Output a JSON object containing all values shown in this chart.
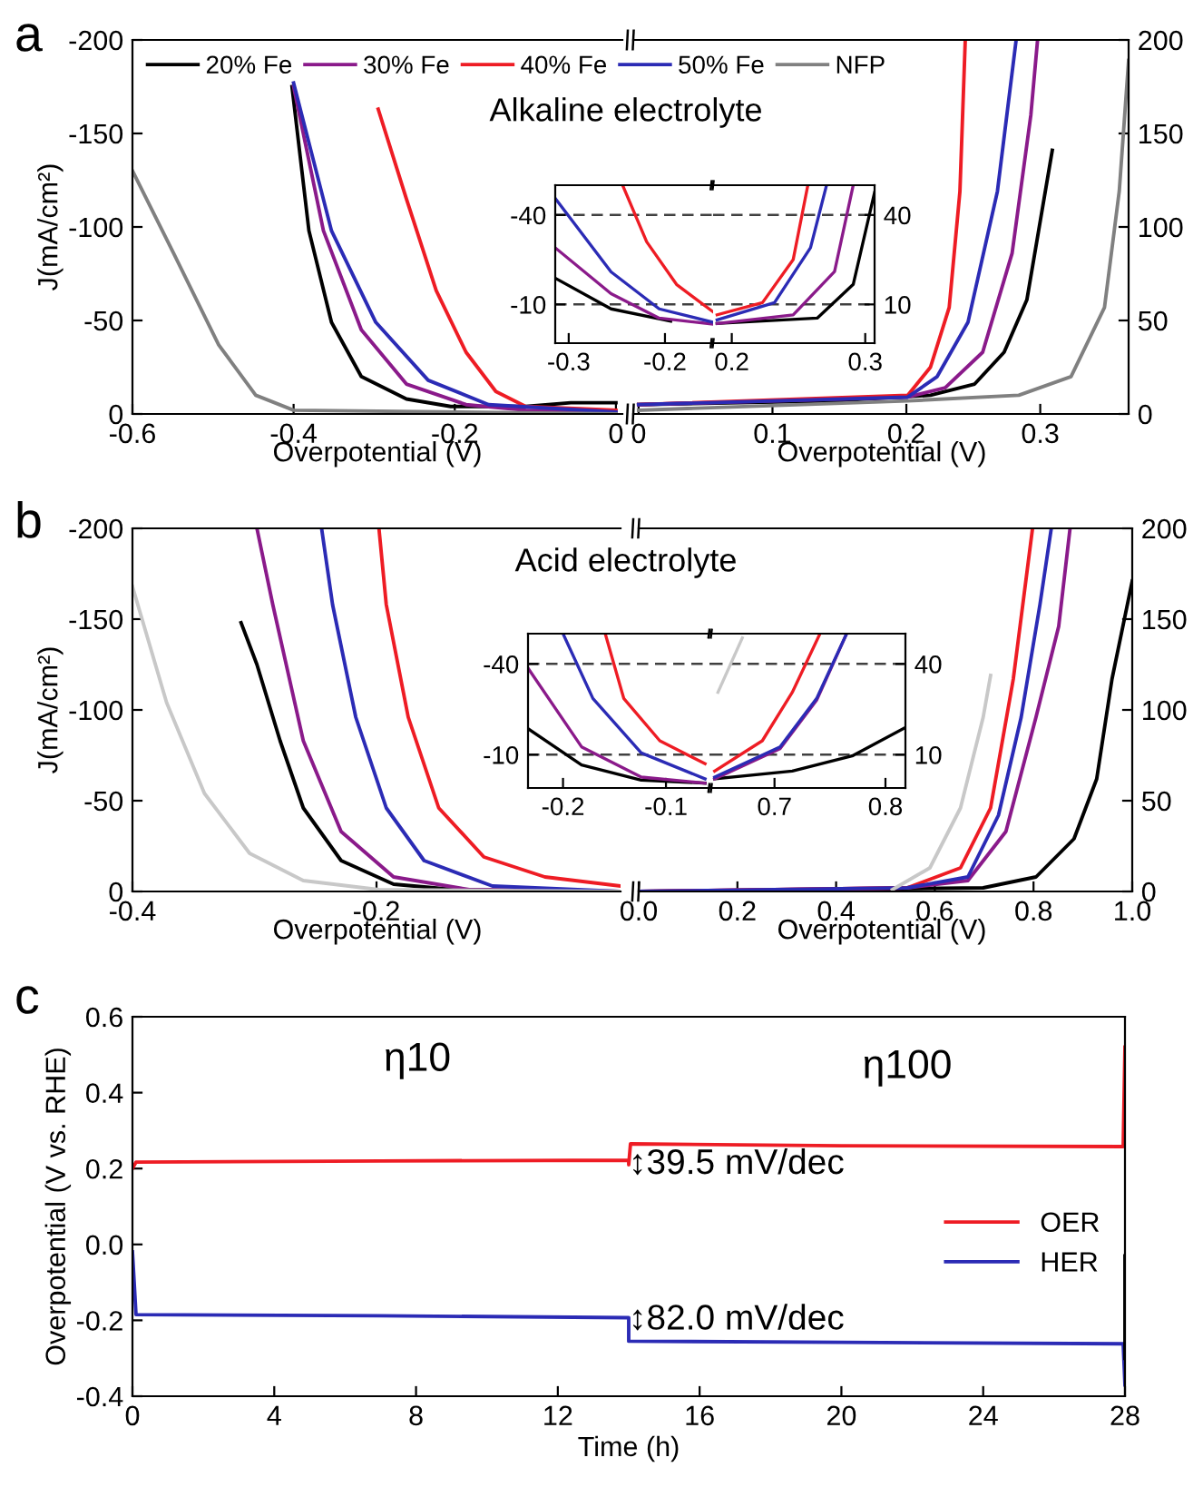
{
  "chart_data": [
    {
      "type": "line",
      "title": "a",
      "xlabel": "Overpotential (V)",
      "ylabel": "J(mA/cm²)",
      "xlim": [
        -0.6,
        0.008
      ],
      "ylim": [
        0,
        -200
      ],
      "xticks": [
        -0.6,
        -0.4,
        -0.2,
        0
      ],
      "yticks": [
        0,
        -50,
        -100,
        -150,
        -200
      ],
      "legend": "top",
      "annotations": [
        "Alkaline electrolyte"
      ],
      "series": [
        {
          "name": "20% Fe",
          "color": "#000000",
          "x": [
            -0.402,
            -0.381,
            -0.353,
            -0.316,
            -0.26,
            -0.205,
            -0.112,
            -0.056,
            0
          ],
          "values": [
            -175,
            -98,
            -49,
            -20,
            -8,
            -4,
            -4,
            -6,
            -6
          ]
        },
        {
          "name": "30% Fe",
          "color": "#8a1a8a",
          "x": [
            -0.4,
            -0.363,
            -0.316,
            -0.26,
            -0.186,
            -0.112,
            0
          ],
          "values": [
            -175,
            -98,
            -45,
            -16,
            -5,
            -2,
            -1
          ]
        },
        {
          "name": "40% Fe",
          "color": "#ee1c24",
          "x": [
            -0.295,
            -0.26,
            -0.223,
            -0.186,
            -0.149,
            -0.112,
            0
          ],
          "values": [
            -163,
            -115,
            -66,
            -33,
            -12,
            -4,
            -2
          ]
        },
        {
          "name": "50% Fe",
          "color": "#2b2bb5",
          "x": [
            -0.4,
            -0.353,
            -0.298,
            -0.233,
            -0.158,
            0
          ],
          "values": [
            -177,
            -98,
            -49,
            -18,
            -5,
            -1
          ]
        },
        {
          "name": "NFP",
          "color": "#808080",
          "x": [
            -0.6,
            -0.549,
            -0.493,
            -0.447,
            -0.4,
            0
          ],
          "values": [
            -130,
            -86,
            -37,
            -10,
            -2,
            0
          ]
        }
      ]
    },
    {
      "type": "line",
      "xlabel": "Overpotential (V)",
      "xlim": [
        -0.004,
        0.366
      ],
      "ylim": [
        0,
        200
      ],
      "xticks": [
        0,
        0.1,
        0.2,
        0.3
      ],
      "yticks": [
        0,
        50,
        100,
        150,
        200
      ],
      "series": [
        {
          "color": "#000000",
          "x": [
            0,
            0.146,
            0.218,
            0.251,
            0.273,
            0.29,
            0.309
          ],
          "values": [
            5,
            7,
            10,
            16,
            33,
            61,
            141
          ]
        },
        {
          "color": "#8a1a8a",
          "x": [
            0,
            0.201,
            0.229,
            0.257,
            0.279,
            0.293,
            0.298
          ],
          "values": [
            5,
            9,
            14,
            33,
            86,
            160,
            200
          ]
        },
        {
          "color": "#ee1c24",
          "x": [
            0,
            0.201,
            0.218,
            0.232,
            0.24,
            0.244
          ],
          "values": [
            5,
            10,
            25,
            57,
            119,
            200
          ]
        },
        {
          "color": "#2b2bb5",
          "x": [
            0,
            0.201,
            0.223,
            0.246,
            0.268,
            0.282
          ],
          "values": [
            5,
            9,
            20,
            49,
            119,
            200
          ]
        },
        {
          "color": "#808080",
          "x": [
            0,
            0.201,
            0.284,
            0.323,
            0.348,
            0.359,
            0.366
          ],
          "values": [
            2,
            7,
            10,
            20,
            57,
            119,
            189
          ]
        }
      ]
    },
    {
      "type": "line",
      "xlim": [
        -0.314,
        -0.15
      ],
      "ylim": [
        3,
        -50
      ],
      "xticks": [
        -0.3,
        -0.2
      ],
      "yticks": [
        -40,
        -10
      ],
      "ref_lines": [
        {
          "axis": "y",
          "value": -40,
          "color": "#404040",
          "line_style": "dashed"
        },
        {
          "axis": "y",
          "value": -10,
          "color": "#404040",
          "line_style": "dashed"
        }
      ],
      "series": [
        {
          "color": "#000000",
          "x": [
            -0.314,
            -0.256,
            -0.194
          ],
          "values": [
            -18.8,
            -8.5,
            -4.4
          ]
        },
        {
          "color": "#8a1a8a",
          "x": [
            -0.314,
            -0.256,
            -0.206,
            -0.15
          ],
          "values": [
            -29,
            -13.6,
            -5.4,
            -3.4
          ]
        },
        {
          "color": "#ee1c24",
          "x": [
            -0.244,
            -0.219,
            -0.188,
            -0.15
          ],
          "values": [
            -50,
            -31,
            -16.7,
            -7.5
          ]
        },
        {
          "color": "#2b2bb5",
          "x": [
            -0.314,
            -0.256,
            -0.206,
            -0.15
          ],
          "values": [
            -45.6,
            -20.9,
            -8.5,
            -4
          ]
        }
      ]
    },
    {
      "type": "line",
      "xlim": [
        0.186,
        0.307
      ],
      "ylim": [
        -3,
        50
      ],
      "xticks": [
        0.2,
        0.3
      ],
      "yticks": [
        40,
        10
      ],
      "ref_lines": [
        {
          "axis": "y",
          "value": 40,
          "color": "#404040",
          "line_style": "dashed"
        },
        {
          "axis": "y",
          "value": 10,
          "color": "#404040",
          "line_style": "dashed"
        }
      ],
      "series": [
        {
          "color": "#000000",
          "x": [
            0.189,
            0.264,
            0.291,
            0.307
          ],
          "values": [
            3.6,
            5.4,
            16.7,
            47.6
          ]
        },
        {
          "color": "#8a1a8a",
          "x": [
            0.189,
            0.246,
            0.277,
            0.291
          ],
          "values": [
            3.6,
            6.5,
            21,
            50
          ]
        },
        {
          "color": "#ee1c24",
          "x": [
            0.189,
            0.223,
            0.246,
            0.257
          ],
          "values": [
            6.5,
            10.6,
            25,
            50
          ]
        },
        {
          "color": "#2b2bb5",
          "x": [
            0.189,
            0.232,
            0.259,
            0.271
          ],
          "values": [
            4.8,
            10.6,
            29,
            50
          ]
        }
      ]
    },
    {
      "type": "line",
      "title": "b",
      "xlabel": "Overpotential (V)",
      "ylabel": "J(mA/cm²)",
      "xlim": [
        -0.4,
        0
      ],
      "ylim": [
        0,
        -200
      ],
      "xticks": [
        -0.4,
        -0.2
      ],
      "yticks": [
        0,
        -50,
        -100,
        -150,
        -200
      ],
      "annotations": [
        "Acid electrolyte"
      ],
      "series": [
        {
          "color": "#000000",
          "x": [
            -0.311,
            -0.298,
            -0.279,
            -0.26,
            -0.229,
            -0.186,
            -0.136,
            0
          ],
          "values": [
            -148,
            -125,
            -83,
            -46,
            -17,
            -4,
            -1,
            0
          ]
        },
        {
          "color": "#8a1a8a",
          "x": [
            -0.298,
            -0.285,
            -0.26,
            -0.229,
            -0.186,
            -0.124,
            0
          ],
          "values": [
            -200,
            -158,
            -83,
            -33,
            -8,
            -1,
            0
          ]
        },
        {
          "color": "#ee1c24",
          "x": [
            -0.198,
            -0.192,
            -0.174,
            -0.149,
            -0.112,
            -0.062,
            0
          ],
          "values": [
            -200,
            -158,
            -96,
            -46,
            -19,
            -8,
            -3
          ]
        },
        {
          "color": "#2b2bb5",
          "x": [
            -0.245,
            -0.236,
            -0.217,
            -0.192,
            -0.161,
            -0.105,
            0
          ],
          "values": [
            -200,
            -158,
            -96,
            -46,
            -17,
            -3,
            0
          ]
        },
        {
          "color": "#c8c8c8",
          "x": [
            -0.4,
            -0.372,
            -0.341,
            -0.304,
            -0.26,
            -0.198,
            0
          ],
          "values": [
            -168,
            -104,
            -54,
            -21,
            -6,
            -1,
            0
          ]
        }
      ]
    },
    {
      "type": "line",
      "xlabel": "Overpotential (V)",
      "xlim": [
        0,
        1
      ],
      "ylim": [
        0,
        200
      ],
      "xticks": [
        {
          "value": 0,
          "label": "0.0"
        },
        0.2,
        0.4,
        0.6,
        0.8,
        {
          "value": 1,
          "label": "1.0"
        }
      ],
      "yticks": [
        0,
        50,
        100,
        150,
        200
      ],
      "series": [
        {
          "color": "#000000",
          "x": [
            0,
            0.698,
            0.805,
            0.882,
            0.928,
            0.959,
            1.0
          ],
          "values": [
            0,
            2,
            8,
            29,
            62,
            117,
            171
          ]
        },
        {
          "color": "#8a1a8a",
          "x": [
            0,
            0.544,
            0.667,
            0.744,
            0.805,
            0.851,
            0.874
          ],
          "values": [
            0,
            2,
            6,
            33,
            96,
            146,
            200
          ]
        },
        {
          "color": "#ee1c24",
          "x": [
            0,
            0.544,
            0.652,
            0.713,
            0.759,
            0.798
          ],
          "values": [
            0,
            2,
            13,
            46,
            117,
            200
          ]
        },
        {
          "color": "#2b2bb5",
          "x": [
            0,
            0.544,
            0.667,
            0.729,
            0.775,
            0.813,
            0.836
          ],
          "values": [
            0,
            2,
            8,
            42,
            96,
            158,
            200
          ]
        },
        {
          "color": "#c8c8c8",
          "x": [
            0.514,
            0.59,
            0.652,
            0.698,
            0.713
          ],
          "values": [
            1,
            13,
            46,
            96,
            119
          ]
        }
      ]
    },
    {
      "type": "line",
      "xlim": [
        -0.234,
        -0.056
      ],
      "ylim": [
        1,
        -50
      ],
      "xticks": [
        -0.2,
        -0.1
      ],
      "yticks": [
        -40,
        -10
      ],
      "ref_lines": [
        {
          "axis": "y",
          "value": -40,
          "color": "#404040",
          "line_style": "dashed"
        },
        {
          "axis": "y",
          "value": -10,
          "color": "#404040",
          "line_style": "dashed"
        }
      ],
      "series": [
        {
          "color": "#000000",
          "x": [
            -0.234,
            -0.182,
            -0.124,
            -0.062
          ],
          "values": [
            -18.6,
            -6.6,
            -1.6,
            -0.6
          ]
        },
        {
          "color": "#8a1a8a",
          "x": [
            -0.234,
            -0.182,
            -0.124,
            -0.062
          ],
          "values": [
            -38.6,
            -12.6,
            -2.6,
            -0.6
          ]
        },
        {
          "color": "#ee1c24",
          "x": [
            -0.159,
            -0.141,
            -0.106,
            -0.062
          ],
          "values": [
            -50,
            -28.6,
            -14.6,
            -7
          ]
        },
        {
          "color": "#2b2bb5",
          "x": [
            -0.2,
            -0.171,
            -0.124,
            -0.062
          ],
          "values": [
            -50,
            -28.6,
            -10.6,
            -2
          ]
        }
      ]
    },
    {
      "type": "line",
      "xlim": [
        0.643,
        0.818
      ],
      "ylim": [
        -1,
        50
      ],
      "xticks": [
        0.7,
        0.8
      ],
      "yticks": [
        40,
        10
      ],
      "ref_lines": [
        {
          "axis": "y",
          "value": 40,
          "color": "#404040",
          "line_style": "dashed"
        },
        {
          "axis": "y",
          "value": 10,
          "color": "#404040",
          "line_style": "dashed"
        }
      ],
      "series": [
        {
          "color": "#000000",
          "x": [
            0.646,
            0.716,
            0.77,
            0.818
          ],
          "values": [
            2,
            4.6,
            9.6,
            19
          ]
        },
        {
          "color": "#8a1a8a",
          "x": [
            0.646,
            0.705,
            0.738,
            0.765
          ],
          "values": [
            2,
            12,
            28,
            50
          ]
        },
        {
          "color": "#ee1c24",
          "x": [
            0.646,
            0.689,
            0.716,
            0.741
          ],
          "values": [
            4.6,
            14.6,
            30.6,
            50
          ]
        },
        {
          "color": "#2b2bb5",
          "x": [
            0.646,
            0.705,
            0.738,
            0.765
          ],
          "values": [
            2.6,
            12.6,
            28.6,
            50
          ]
        },
        {
          "color": "#c8c8c8",
          "x": [
            0.649,
            0.671
          ],
          "values": [
            30.6,
            48.6
          ]
        }
      ]
    },
    {
      "type": "line",
      "title": "c",
      "xlabel": "Time (h)",
      "ylabel": "Overpotential (V vs. RHE)",
      "xlim": [
        0,
        28
      ],
      "ylim": [
        -0.4,
        0.6
      ],
      "xticks": [
        0,
        4,
        8,
        12,
        16,
        20,
        24,
        28
      ],
      "yticks": [
        -0.4,
        -0.2,
        {
          "value": 0,
          "label": "0.0"
        },
        0.2,
        0.4,
        0.6
      ],
      "legend": "right",
      "annotations": [
        "η10",
        "η100",
        {
          "text": "↕39.5 mV/dec",
          "x": 14,
          "y": 0.21
        },
        {
          "text": "↕82.0 mV/dec",
          "x": 14,
          "y": -0.2
        }
      ],
      "series": [
        {
          "name": "OER",
          "color": "#ee1c24",
          "x": [
            0,
            0.1,
            7,
            14,
            14,
            14.05,
            20,
            27.95,
            28
          ],
          "values": [
            0.2,
            0.217,
            0.22,
            0.222,
            0.21,
            0.265,
            0.26,
            0.258,
            0.52
          ]
        },
        {
          "name": "HER",
          "color": "#2b2bb5",
          "x": [
            0,
            0.1,
            7,
            14,
            14,
            20,
            27.95,
            28
          ],
          "values": [
            -0.02,
            -0.185,
            -0.188,
            -0.193,
            -0.255,
            -0.258,
            -0.262,
            -0.37
          ]
        },
        {
          "color": "#000000",
          "x": [
            28,
            28
          ],
          "values": [
            -0.03,
            -0.3
          ]
        }
      ]
    }
  ]
}
